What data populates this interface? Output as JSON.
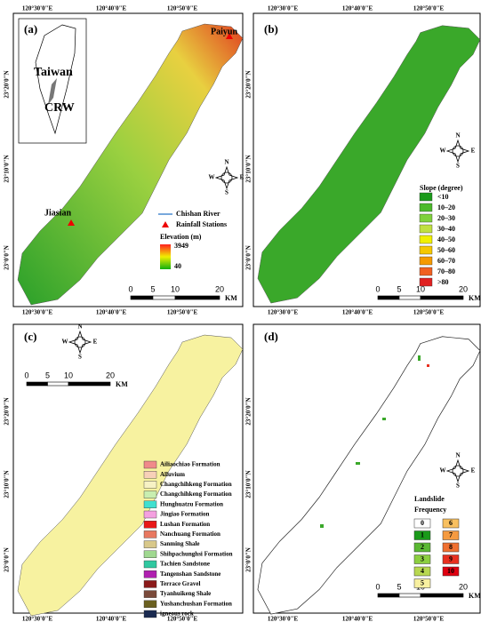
{
  "coordinates": {
    "lon": [
      "120°30'0\"E",
      "120°40'0\"E",
      "120°50'0\"E"
    ],
    "lat": [
      "23°20'0\"N",
      "23°10'0\"N",
      "23°0'0\"N"
    ]
  },
  "compass": [
    "N",
    "E",
    "S",
    "W"
  ],
  "scale_bar": {
    "ticks": [
      0,
      5,
      10,
      20
    ],
    "unit": "KM"
  },
  "panel_a": {
    "label": "(a)",
    "stations": [
      "Paiyun",
      "Jiasian"
    ],
    "inset": [
      "Taiwan",
      "CRW"
    ],
    "legend": {
      "river": "Chishan River",
      "rainfall": "Rainfall Stations",
      "elevation_title": "Elevation (m)",
      "elevation_max": 3949,
      "elevation_min": 40
    }
  },
  "panel_b": {
    "label": "(b)",
    "legend_title": "Slope (degree)",
    "classes": [
      {
        "label": "<10",
        "color": "#1a9a1a"
      },
      {
        "label": "10–20",
        "color": "#4cba2a"
      },
      {
        "label": "20–30",
        "color": "#7fd13b"
      },
      {
        "label": "30–40",
        "color": "#c0e040"
      },
      {
        "label": "40–50",
        "color": "#f0f000"
      },
      {
        "label": "50–60",
        "color": "#f5c800"
      },
      {
        "label": "60–70",
        "color": "#f59a00"
      },
      {
        "label": "70–80",
        "color": "#f06020"
      },
      {
        "label": ">80",
        "color": "#e02020"
      }
    ]
  },
  "panel_c": {
    "label": "(c)",
    "classes": [
      {
        "label": "Ailiaochiao Formation",
        "color": "#f08a8a"
      },
      {
        "label": "Alluvium",
        "color": "#f7d0b8"
      },
      {
        "label": "Changchihkeng Formation",
        "color": "#f7f2c4"
      },
      {
        "label": "Changchihkeng Formation",
        "color": "#c8eeb0"
      },
      {
        "label": "Hunghuatzu Formation",
        "color": "#40e0d0"
      },
      {
        "label": "Jingiao Formation",
        "color": "#f4a0e0"
      },
      {
        "label": "Lushan Formation",
        "color": "#e81818"
      },
      {
        "label": "Nanchuang Formation",
        "color": "#e87860"
      },
      {
        "label": "Sanming Shale",
        "color": "#d8c88a"
      },
      {
        "label": "Shihpachunghsi Formation",
        "color": "#a0d890"
      },
      {
        "label": "Tachien Sandstone",
        "color": "#30c8a0"
      },
      {
        "label": "Tangenshan Sandstone",
        "color": "#b020b0"
      },
      {
        "label": "Terrace Gravel",
        "color": "#8b1a1a"
      },
      {
        "label": "Tyanhuikeng Shale",
        "color": "#7a4a3a"
      },
      {
        "label": "Yushanchushan Formation",
        "color": "#6b6020"
      },
      {
        "label": "igneous rock",
        "color": "#1a2a50"
      }
    ]
  },
  "panel_d": {
    "label": "(d)",
    "legend_title": [
      "Landslide",
      "Frequency"
    ],
    "classes": [
      {
        "value": 0,
        "color": "#ffffff"
      },
      {
        "value": 1,
        "color": "#1a9a1a"
      },
      {
        "value": 2,
        "color": "#5ab832"
      },
      {
        "value": 3,
        "color": "#8ccf40"
      },
      {
        "value": 4,
        "color": "#b8d850"
      },
      {
        "value": 5,
        "color": "#f8f0a0"
      },
      {
        "value": 6,
        "color": "#f8c060"
      },
      {
        "value": 7,
        "color": "#f59a40"
      },
      {
        "value": 8,
        "color": "#f07030"
      },
      {
        "value": 9,
        "color": "#e83020"
      },
      {
        "value": 10,
        "color": "#e00010"
      }
    ]
  }
}
